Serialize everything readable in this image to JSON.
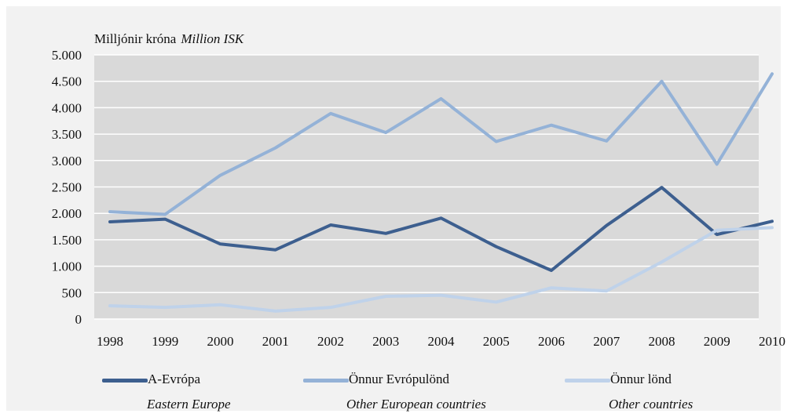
{
  "chart_data": {
    "type": "line",
    "unit_label_is": "Milljónir króna",
    "unit_label_en": "Million ISK",
    "x": [
      "1998",
      "1999",
      "2000",
      "2001",
      "2002",
      "2003",
      "2004",
      "2005",
      "2006",
      "2007",
      "2008",
      "2009",
      "2010"
    ],
    "ylim": [
      0,
      5000
    ],
    "yticks": [
      0,
      500,
      1000,
      1500,
      2000,
      2500,
      3000,
      3500,
      4000,
      4500,
      5000
    ],
    "ytick_labels": [
      "0",
      "500",
      "1.000",
      "1.500",
      "2.000",
      "2.500",
      "3.000",
      "3.500",
      "4.000",
      "4.500",
      "5.000"
    ],
    "grid": true,
    "legend_position": "bottom",
    "series": [
      {
        "name": "A-Evrópa",
        "name_en": "Eastern Europe",
        "color": "#3d5f8f",
        "values": [
          1840,
          1890,
          1420,
          1310,
          1780,
          1620,
          1910,
          1370,
          920,
          1770,
          2490,
          1600,
          1850
        ]
      },
      {
        "name": "Önnur Evrópulönd",
        "name_en": "Other European countries",
        "color": "#94b2d7",
        "values": [
          2030,
          1980,
          2720,
          3240,
          3890,
          3530,
          4170,
          3360,
          3670,
          3370,
          4500,
          2930,
          4640
        ]
      },
      {
        "name": "Önnur lönd",
        "name_en": "Other countries",
        "color": "#bfd2ea",
        "values": [
          250,
          220,
          270,
          150,
          220,
          430,
          450,
          320,
          590,
          530,
          1080,
          1680,
          1730
        ]
      }
    ]
  }
}
